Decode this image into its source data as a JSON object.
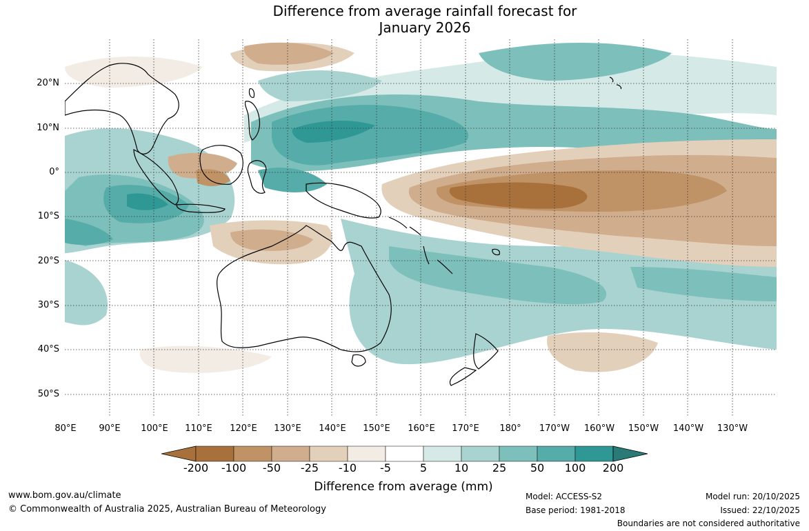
{
  "title": {
    "line1": "Difference from average rainfall forecast for",
    "line2": "January 2026"
  },
  "map": {
    "region": "Australia, Indian Ocean and Western Pacific",
    "lat_labels": [
      "20°N",
      "10°N",
      "0°",
      "10°S",
      "20°S",
      "30°S",
      "40°S",
      "50°S"
    ],
    "lon_labels": [
      "80°E",
      "90°E",
      "100°E",
      "110°E",
      "120°E",
      "130°E",
      "140°E",
      "150°E",
      "160°E",
      "170°E",
      "180°",
      "170°W",
      "160°W",
      "150°W",
      "140°W",
      "130°W"
    ],
    "colors": {
      "land_outline": "#000000",
      "grid": "#333333"
    }
  },
  "legend": {
    "ticks": [
      "-200",
      "-100",
      "-50",
      "-25",
      "-10",
      "-5",
      "5",
      "10",
      "25",
      "50",
      "100",
      "200"
    ],
    "colors": [
      "#a8713b",
      "#c09366",
      "#d0ad8c",
      "#e3d0bb",
      "#f2ece4",
      "#ffffff",
      "#d5e9e7",
      "#a8d3d0",
      "#7dbfbb",
      "#55aca8",
      "#2f9894",
      "#2a7a78"
    ],
    "title": "Difference from average (mm)"
  },
  "footer": {
    "website": "www.bom.gov.au/climate",
    "copyright": "© Commonwealth of Australia 2025, Australian Bureau of Meteorology",
    "model": "Model: ACCESS-S2",
    "base_period": "Base period: 1981-2018",
    "model_run": "Model run: 20/10/2025",
    "issued": "Issued: 22/10/2025",
    "disclaimer": "Boundaries are not considered authoritative"
  }
}
